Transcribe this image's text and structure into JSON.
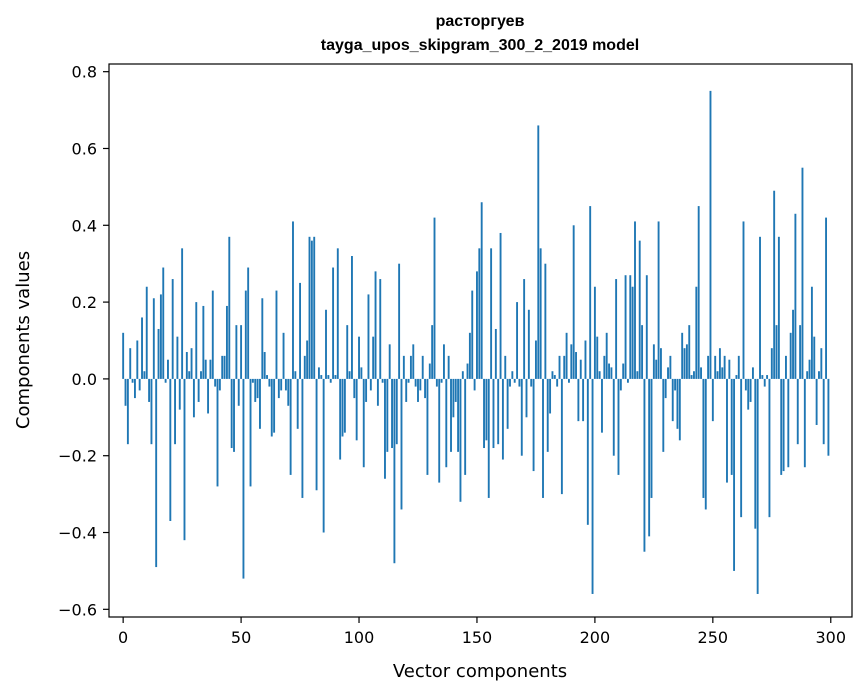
{
  "chart_data": {
    "type": "bar",
    "title": "расторгуев",
    "subtitle": "tayga_upos_skipgram_300_2_2019 model",
    "xlabel": "Vector components",
    "ylabel": "Components values",
    "xlim": [
      -6,
      309
    ],
    "ylim": [
      -0.62,
      0.82
    ],
    "xticks": [
      0,
      50,
      100,
      150,
      200,
      250,
      300
    ],
    "xtick_labels": [
      "0",
      "50",
      "100",
      "150",
      "200",
      "250",
      "300"
    ],
    "yticks": [
      -0.6,
      -0.4,
      -0.2,
      0.0,
      0.2,
      0.4,
      0.6,
      0.8
    ],
    "ytick_labels": [
      "−0.6",
      "−0.4",
      "−0.2",
      "0.0",
      "0.2",
      "0.4",
      "0.6",
      "0.8"
    ],
    "grid": false,
    "bar_color": "#1f77b4",
    "values": [
      0.12,
      -0.07,
      -0.17,
      0.08,
      -0.01,
      -0.05,
      0.1,
      -0.03,
      0.16,
      0.02,
      0.24,
      -0.06,
      -0.17,
      0.21,
      -0.49,
      0.13,
      0.22,
      0.29,
      -0.01,
      0.05,
      -0.37,
      0.26,
      -0.17,
      0.11,
      -0.08,
      0.34,
      -0.42,
      0.07,
      0.02,
      0.08,
      -0.1,
      0.2,
      -0.06,
      0.02,
      0.19,
      0.05,
      -0.09,
      0.05,
      0.23,
      -0.02,
      -0.28,
      -0.03,
      0.06,
      0.06,
      0.19,
      0.37,
      -0.18,
      -0.19,
      0.14,
      -0.07,
      0.14,
      -0.52,
      0.23,
      0.29,
      -0.28,
      -0.01,
      -0.06,
      -0.05,
      -0.13,
      0.21,
      0.07,
      0.01,
      -0.02,
      -0.15,
      -0.14,
      0.23,
      -0.05,
      -0.03,
      0.12,
      -0.03,
      -0.07,
      -0.25,
      0.41,
      0.02,
      -0.13,
      0.25,
      -0.31,
      0.06,
      0.1,
      0.37,
      0.36,
      0.37,
      -0.29,
      0.03,
      0.01,
      -0.4,
      0.18,
      0.01,
      -0.01,
      0.29,
      0.01,
      0.34,
      -0.21,
      -0.15,
      -0.14,
      0.14,
      0.02,
      0.32,
      -0.05,
      -0.16,
      0.11,
      0.03,
      -0.23,
      -0.06,
      0.22,
      -0.03,
      0.11,
      0.28,
      -0.07,
      0.26,
      -0.01,
      -0.26,
      -0.19,
      0.09,
      -0.18,
      -0.48,
      -0.17,
      0.3,
      -0.34,
      0.06,
      -0.06,
      -0.01,
      0.06,
      0.09,
      -0.02,
      -0.06,
      -0.03,
      0.06,
      -0.05,
      -0.25,
      0.04,
      0.14,
      0.42,
      -0.02,
      -0.27,
      -0.01,
      0.09,
      -0.23,
      0.06,
      -0.19,
      -0.1,
      -0.06,
      -0.19,
      -0.32,
      0.02,
      -0.25,
      0.04,
      0.12,
      0.23,
      -0.03,
      0.28,
      0.34,
      0.46,
      -0.18,
      -0.16,
      -0.31,
      0.34,
      -0.18,
      0.13,
      -0.17,
      0.38,
      -0.21,
      0.06,
      -0.13,
      -0.02,
      0.02,
      -0.01,
      0.2,
      -0.02,
      -0.2,
      0.26,
      -0.1,
      0.18,
      -0.02,
      -0.24,
      0.1,
      0.66,
      0.34,
      -0.31,
      0.3,
      -0.19,
      -0.09,
      0.02,
      0.01,
      -0.02,
      0.06,
      -0.3,
      0.06,
      0.12,
      -0.01,
      0.09,
      0.4,
      0.07,
      -0.11,
      0.05,
      -0.11,
      0.1,
      -0.38,
      0.45,
      -0.56,
      0.24,
      0.11,
      0.02,
      -0.14,
      0.06,
      0.12,
      0.04,
      0.03,
      -0.2,
      0.26,
      -0.25,
      -0.03,
      0.04,
      0.27,
      -0.01,
      0.27,
      0.24,
      0.41,
      0.02,
      0.36,
      0.14,
      -0.45,
      0.27,
      -0.41,
      -0.31,
      0.09,
      0.05,
      0.41,
      0.08,
      -0.19,
      -0.05,
      0.03,
      0.06,
      -0.11,
      -0.03,
      -0.13,
      -0.16,
      0.12,
      0.08,
      0.09,
      0.14,
      0.01,
      0.02,
      0.24,
      0.45,
      0.03,
      -0.31,
      -0.34,
      0.06,
      0.75,
      -0.11,
      0.06,
      0.02,
      0.08,
      0.03,
      0.06,
      -0.27,
      0.05,
      -0.25,
      -0.5,
      0.01,
      0.06,
      -0.36,
      0.41,
      -0.03,
      -0.08,
      -0.06,
      0.03,
      -0.39,
      -0.56,
      0.37,
      0.01,
      -0.02,
      0.01,
      -0.36,
      0.08,
      0.49,
      0.14,
      0.37,
      -0.25,
      -0.24,
      0.06,
      -0.23,
      0.12,
      0.18,
      0.43,
      -0.17,
      0.14,
      0.55,
      -0.23,
      0.02,
      0.05,
      0.24,
      0.11,
      -0.12,
      0.02,
      0.08,
      -0.17,
      0.42,
      -0.2
    ]
  }
}
